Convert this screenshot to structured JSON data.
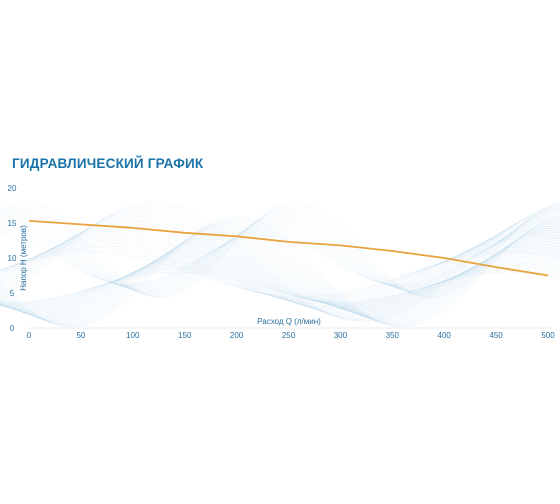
{
  "chart_data": {
    "type": "line",
    "title": "Гидравлический график",
    "xlabel": "Расход Q (л/мин)",
    "ylabel": "Напор H (метров)",
    "xlim": [
      0,
      500
    ],
    "ylim": [
      0,
      20
    ],
    "xticks": [
      0,
      50,
      100,
      150,
      200,
      250,
      300,
      350,
      400,
      450,
      500
    ],
    "yticks": [
      0,
      5,
      10,
      15,
      20
    ],
    "grid": false,
    "colors": {
      "line": "#e8a33c",
      "axis": "#2a6f9e",
      "title": "#1a73a8",
      "waves": "#8fbfe0"
    },
    "series": [
      {
        "x": [
          0,
          50,
          100,
          150,
          200,
          250,
          300,
          350,
          400,
          450,
          500
        ],
        "y": [
          15.3,
          14.8,
          14.3,
          13.6,
          13.1,
          12.3,
          11.8,
          11.0,
          10.0,
          8.7,
          7.5
        ]
      }
    ]
  }
}
